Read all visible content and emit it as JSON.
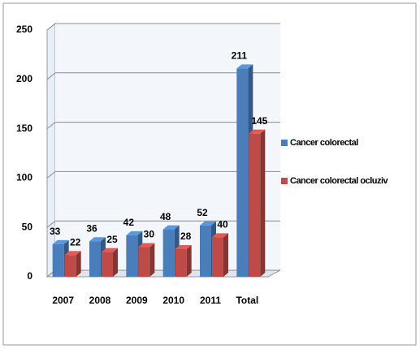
{
  "chart_data": {
    "type": "bar3d",
    "categories": [
      "2007",
      "2008",
      "2009",
      "2010",
      "2011",
      "Total"
    ],
    "series": [
      {
        "name": "Cancer colorectal",
        "color": "#4a7ebb",
        "values": [
          33,
          36,
          42,
          48,
          52,
          211
        ]
      },
      {
        "name": "Cancer colorectal ocluziv",
        "color": "#be4b48",
        "values": [
          22,
          25,
          30,
          28,
          40,
          145
        ]
      }
    ],
    "ylim": [
      0,
      250
    ],
    "yticks": [
      0,
      50,
      100,
      150,
      200,
      250
    ],
    "grid": true,
    "legend": "right"
  }
}
